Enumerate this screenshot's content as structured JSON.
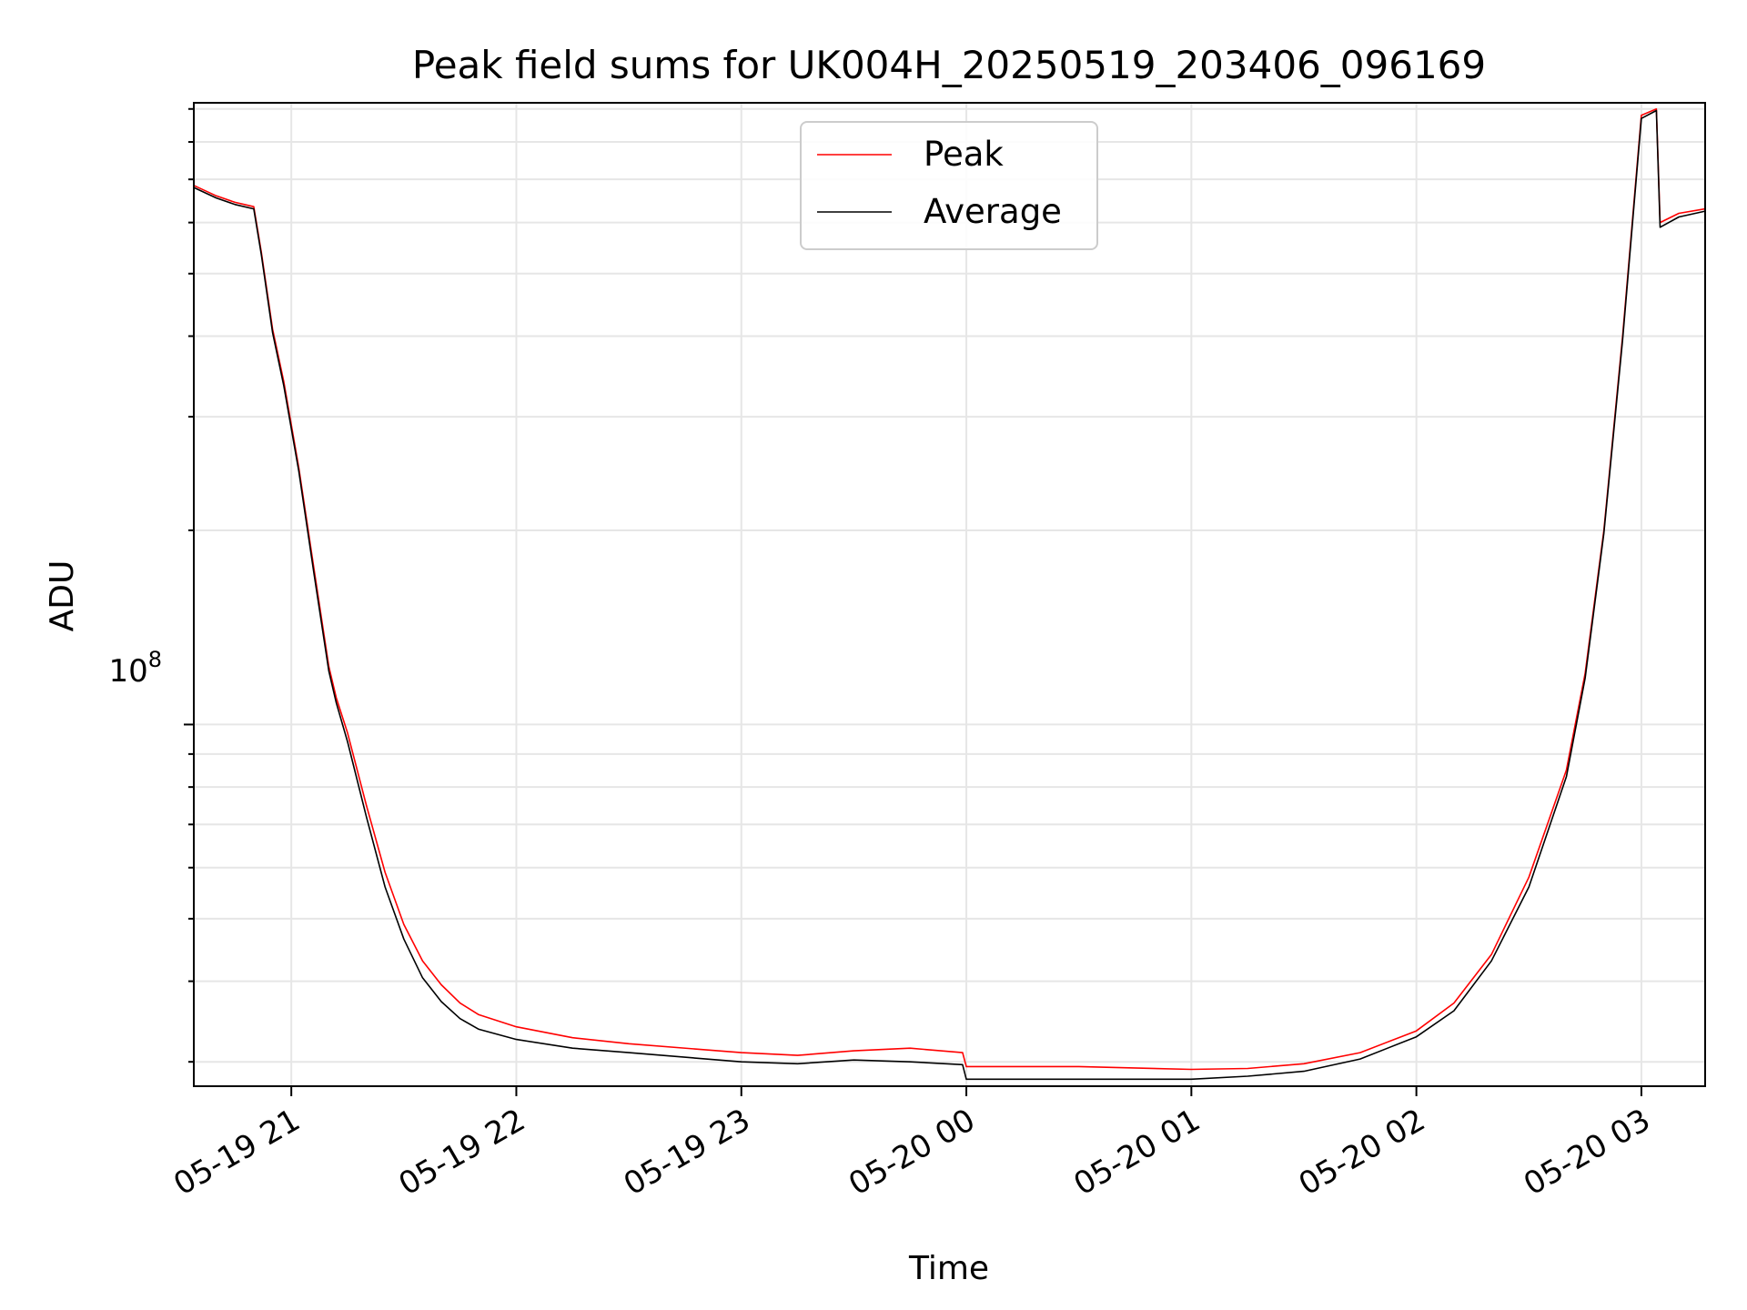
{
  "chart_data": {
    "type": "line",
    "title": "Peak field sums for UK004H_20250519_203406_096169",
    "xlabel": "Time",
    "ylabel": "ADU",
    "x_scale": "time",
    "y_scale": "log",
    "xlim": [
      "2025-05-19 20:34",
      "2025-05-20 03:17"
    ],
    "ylim": [
      27500000,
      920000000
    ],
    "grid": true,
    "legend_position": "top-center",
    "x_ticks": [
      {
        "t": "2025-05-19 21:00",
        "label": "05-19 21"
      },
      {
        "t": "2025-05-19 22:00",
        "label": "05-19 22"
      },
      {
        "t": "2025-05-19 23:00",
        "label": "05-19 23"
      },
      {
        "t": "2025-05-20 00:00",
        "label": "05-20 00"
      },
      {
        "t": "2025-05-20 01:00",
        "label": "05-20 01"
      },
      {
        "t": "2025-05-20 02:00",
        "label": "05-20 02"
      },
      {
        "t": "2025-05-20 03:00",
        "label": "05-20 03"
      }
    ],
    "y_tick_label": {
      "base": "10",
      "exponent": "8",
      "value": 100000000
    },
    "series": [
      {
        "name": "Peak",
        "color": "#ff0000",
        "x": [
          "2025-05-19 20:34",
          "2025-05-19 20:40",
          "2025-05-19 20:45",
          "2025-05-19 20:50",
          "2025-05-19 20:52",
          "2025-05-19 20:55",
          "2025-05-19 20:58",
          "2025-05-19 21:02",
          "2025-05-19 21:06",
          "2025-05-19 21:10",
          "2025-05-19 21:12",
          "2025-05-19 21:15",
          "2025-05-19 21:20",
          "2025-05-19 21:25",
          "2025-05-19 21:30",
          "2025-05-19 21:35",
          "2025-05-19 21:40",
          "2025-05-19 21:45",
          "2025-05-19 21:50",
          "2025-05-19 22:00",
          "2025-05-19 22:15",
          "2025-05-19 22:30",
          "2025-05-19 23:00",
          "2025-05-19 23:15",
          "2025-05-19 23:30",
          "2025-05-19 23:45",
          "2025-05-19 23:59",
          "2025-05-20 00:00",
          "2025-05-20 00:30",
          "2025-05-20 01:00",
          "2025-05-20 01:15",
          "2025-05-20 01:30",
          "2025-05-20 01:45",
          "2025-05-20 02:00",
          "2025-05-20 02:10",
          "2025-05-20 02:20",
          "2025-05-20 02:30",
          "2025-05-20 02:40",
          "2025-05-20 02:45",
          "2025-05-20 02:50",
          "2025-05-20 02:55",
          "2025-05-20 03:00",
          "2025-05-20 03:04",
          "2025-05-20 03:05",
          "2025-05-20 03:10",
          "2025-05-20 03:17"
        ],
        "y": [
          685000000,
          660000000,
          645000000,
          635000000,
          540000000,
          410000000,
          340000000,
          250000000,
          175000000,
          123000000,
          110000000,
          97000000,
          75000000,
          59000000,
          49000000,
          43000000,
          39500000,
          37000000,
          35500000,
          34000000,
          32700000,
          32000000,
          31000000,
          30700000,
          31200000,
          31500000,
          31000000,
          29500000,
          29500000,
          29200000,
          29300000,
          29800000,
          31000000,
          33500000,
          37000000,
          44000000,
          58000000,
          85000000,
          120000000,
          200000000,
          400000000,
          880000000,
          900000000,
          600000000,
          620000000,
          630000000
        ]
      },
      {
        "name": "Average",
        "color": "#000000",
        "x": [
          "2025-05-19 20:34",
          "2025-05-19 20:40",
          "2025-05-19 20:45",
          "2025-05-19 20:50",
          "2025-05-19 20:52",
          "2025-05-19 20:55",
          "2025-05-19 20:58",
          "2025-05-19 21:02",
          "2025-05-19 21:06",
          "2025-05-19 21:10",
          "2025-05-19 21:12",
          "2025-05-19 21:15",
          "2025-05-19 21:20",
          "2025-05-19 21:25",
          "2025-05-19 21:30",
          "2025-05-19 21:35",
          "2025-05-19 21:40",
          "2025-05-19 21:45",
          "2025-05-19 21:50",
          "2025-05-19 22:00",
          "2025-05-19 22:15",
          "2025-05-19 22:30",
          "2025-05-19 23:00",
          "2025-05-19 23:15",
          "2025-05-19 23:30",
          "2025-05-19 23:45",
          "2025-05-19 23:59",
          "2025-05-20 00:00",
          "2025-05-20 00:30",
          "2025-05-20 01:00",
          "2025-05-20 01:15",
          "2025-05-20 01:30",
          "2025-05-20 01:45",
          "2025-05-20 02:00",
          "2025-05-20 02:10",
          "2025-05-20 02:20",
          "2025-05-20 02:30",
          "2025-05-20 02:40",
          "2025-05-20 02:45",
          "2025-05-20 02:50",
          "2025-05-20 02:55",
          "2025-05-20 03:00",
          "2025-05-20 03:04",
          "2025-05-20 03:05",
          "2025-05-20 03:10",
          "2025-05-20 03:17"
        ],
        "y": [
          680000000,
          655000000,
          640000000,
          630000000,
          535000000,
          405000000,
          335000000,
          247000000,
          172000000,
          121000000,
          108000000,
          94000000,
          72000000,
          56000000,
          46500000,
          40500000,
          37200000,
          35000000,
          33700000,
          32500000,
          31500000,
          31000000,
          30000000,
          29800000,
          30200000,
          30000000,
          29700000,
          28200000,
          28200000,
          28200000,
          28500000,
          29000000,
          30300000,
          32800000,
          36000000,
          43000000,
          56000000,
          83000000,
          118000000,
          198000000,
          395000000,
          870000000,
          895000000,
          590000000,
          612000000,
          625000000
        ]
      }
    ]
  }
}
